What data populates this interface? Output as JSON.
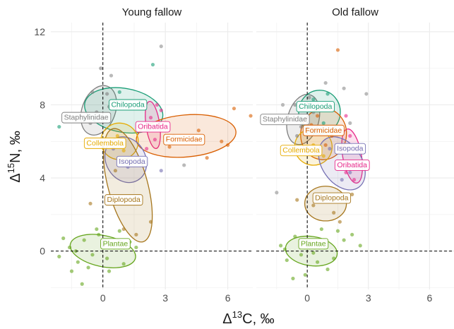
{
  "chart_data": {
    "type": "scatter",
    "facets": [
      "Young fallow",
      "Old fallow"
    ],
    "xlabel": "Δ13C, ‰",
    "ylabel": "Δ15N, ‰",
    "xlim": [
      -2.5,
      7.2
    ],
    "ylim": [
      -2.1,
      12.5
    ],
    "xticks": [
      0,
      3,
      6
    ],
    "yticks": [
      0,
      4,
      8,
      12
    ],
    "reference_lines": {
      "x": 0,
      "y": 0,
      "style": "dashed"
    },
    "grid": true,
    "series": [
      {
        "name": "Staphylinidae",
        "color": "#7f7f7f",
        "panels": {
          "Young fallow": {
            "ellipse": {
              "cx": -0.2,
              "cy": 7.7,
              "rx": 0.8,
              "ry": 1.4,
              "angle": 20
            },
            "label_at": [
              -0.8,
              7.3
            ],
            "points": [
              [
                -0.5,
                8.7
              ],
              [
                0.2,
                8.6
              ],
              [
                -0.1,
                10.0
              ],
              [
                -0.3,
                7.6
              ],
              [
                0.3,
                7.9
              ],
              [
                -0.6,
                7.0
              ]
            ]
          },
          "Old fallow": {
            "ellipse": {
              "cx": -0.2,
              "cy": 7.2,
              "rx": 0.75,
              "ry": 1.4,
              "angle": 15
            },
            "label_at": [
              -1.1,
              7.2
            ],
            "points": [
              [
                -0.6,
                8.0
              ],
              [
                0.1,
                8.4
              ],
              [
                -0.3,
                6.8
              ],
              [
                0.3,
                7.6
              ],
              [
                -0.5,
                6.3
              ],
              [
                0.4,
                5.3
              ]
            ]
          }
        }
      },
      {
        "name": "Chilopoda",
        "color": "#1b9e77",
        "panels": {
          "Young fallow": {
            "ellipse": {
              "cx": 1.0,
              "cy": 7.7,
              "rx": 1.9,
              "ry": 1.2,
              "angle": 10
            },
            "label_at": [
              1.2,
              8.0
            ],
            "points": [
              [
                -0.9,
                7.2
              ],
              [
                0.8,
                8.7
              ],
              [
                1.8,
                8.2
              ],
              [
                2.4,
                10.2
              ],
              [
                -2.1,
                6.8
              ]
            ]
          },
          "Old fallow": {
            "ellipse": {
              "cx": 0.6,
              "cy": 7.6,
              "rx": 1.0,
              "ry": 1.2,
              "angle": 5
            },
            "label_at": [
              0.4,
              7.9
            ],
            "points": [
              [
                0.3,
                8.3
              ],
              [
                1.0,
                8.6
              ],
              [
                -0.3,
                7.3
              ],
              [
                0.8,
                7.0
              ]
            ]
          }
        }
      },
      {
        "name": "Oribatida",
        "color": "#e7298a",
        "panels": {
          "Young fallow": {
            "ellipse": {
              "cx": 2.4,
              "cy": 6.9,
              "rx": 0.33,
              "ry": 1.3,
              "angle": -8
            },
            "label_at": [
              2.4,
              6.8
            ],
            "points": [
              [
                2.6,
                8.0
              ],
              [
                2.3,
                7.3
              ],
              [
                2.5,
                6.1
              ],
              [
                2.1,
                5.6
              ],
              [
                2.8,
                7.7
              ]
            ]
          },
          "Old fallow": {
            "ellipse": {
              "cx": 2.2,
              "cy": 5.2,
              "rx": 0.45,
              "ry": 1.5,
              "angle": -10
            },
            "label_at": [
              2.2,
              4.7
            ],
            "points": [
              [
                2.1,
                6.3
              ],
              [
                2.4,
                5.6
              ],
              [
                1.9,
                4.3
              ],
              [
                2.3,
                3.9
              ],
              [
                1.9,
                7.4
              ]
            ]
          }
        }
      },
      {
        "name": "Formicidae",
        "color": "#d95f02",
        "panels": {
          "Young fallow": {
            "ellipse": {
              "cx": 4.0,
              "cy": 6.3,
              "rx": 2.4,
              "ry": 1.15,
              "angle": -5
            },
            "label_at": [
              3.9,
              6.1
            ],
            "points": [
              [
                3.4,
                6.3
              ],
              [
                4.6,
                6.6
              ],
              [
                5.7,
                6.0
              ],
              [
                6.3,
                7.8
              ],
              [
                7.1,
                7.4
              ],
              [
                5.0,
                5.1
              ],
              [
                3.2,
                5.7
              ],
              [
                6.0,
                5.8
              ]
            ]
          },
          "Old fallow": {
            "ellipse": {
              "cx": 0.8,
              "cy": 6.4,
              "rx": 1.1,
              "ry": 1.4,
              "angle": 5
            },
            "label_at": [
              0.8,
              6.6
            ],
            "points": [
              [
                0.5,
                7.4
              ],
              [
                1.2,
                6.3
              ],
              [
                0.9,
                5.8
              ],
              [
                1.5,
                11.0
              ],
              [
                0.2,
                6.9
              ]
            ]
          }
        }
      },
      {
        "name": "Collembola",
        "color": "#e6ab02",
        "panels": {
          "Young fallow": {
            "ellipse": {
              "cx": 0.8,
              "cy": 6.0,
              "rx": 0.9,
              "ry": 1.0,
              "angle": 10
            },
            "label_at": [
              0.1,
              5.9
            ],
            "points": [
              [
                0.7,
                6.3
              ],
              [
                1.0,
                5.5
              ],
              [
                0.4,
                5.9
              ]
            ]
          },
          "Old fallow": {
            "ellipse": {
              "cx": 0.3,
              "cy": 5.7,
              "rx": 0.9,
              "ry": 1.0,
              "angle": 10
            },
            "label_at": [
              -0.3,
              5.5
            ],
            "points": [
              [
                0.3,
                5.8
              ],
              [
                0.8,
                5.2
              ],
              [
                -0.2,
                5.5
              ]
            ]
          }
        }
      },
      {
        "name": "Isopoda",
        "color": "#7570b3",
        "panels": {
          "Young fallow": {
            "ellipse": {
              "cx": 1.1,
              "cy": 5.0,
              "rx": 0.95,
              "ry": 1.3,
              "angle": -30
            },
            "label_at": [
              1.4,
              4.9
            ],
            "points": [
              [
                0.5,
                5.6
              ],
              [
                1.2,
                4.6
              ],
              [
                2.8,
                4.4
              ],
              [
                1.6,
                4.9
              ]
            ]
          },
          "Old fallow": {
            "ellipse": {
              "cx": 1.7,
              "cy": 4.8,
              "rx": 0.95,
              "ry": 1.6,
              "angle": -35
            },
            "label_at": [
              2.1,
              5.6
            ],
            "points": [
              [
                1.1,
                5.6
              ],
              [
                2.1,
                4.3
              ],
              [
                1.7,
                3.9
              ],
              [
                2.6,
                4.6
              ]
            ]
          }
        }
      },
      {
        "name": "Diplopoda",
        "color": "#a6761d",
        "panels": {
          "Young fallow": {
            "ellipse": {
              "cx": 1.2,
              "cy": 3.6,
              "rx": 0.95,
              "ry": 3.2,
              "angle": -15
            },
            "label_at": [
              1.0,
              2.8
            ],
            "points": [
              [
                -0.6,
                2.6
              ],
              [
                1.0,
                1.2
              ],
              [
                1.6,
                0.9
              ],
              [
                0.6,
                4.4
              ],
              [
                1.7,
                2.9
              ],
              [
                2.3,
                1.6
              ]
            ]
          },
          "Old fallow": {
            "ellipse": {
              "cx": 0.9,
              "cy": 2.6,
              "rx": 1.0,
              "ry": 0.95,
              "angle": 0
            },
            "label_at": [
              1.2,
              2.9
            ],
            "points": [
              [
                -0.5,
                2.8
              ],
              [
                0.3,
                2.5
              ],
              [
                1.3,
                2.1
              ],
              [
                2.2,
                3.1
              ],
              [
                1.6,
                1.6
              ]
            ]
          }
        }
      },
      {
        "name": "Plantae",
        "color": "#66a61e",
        "panels": {
          "Young fallow": {
            "ellipse": {
              "cx": 0.0,
              "cy": 0.0,
              "rx": 1.6,
              "ry": 0.85,
              "angle": 12
            },
            "label_at": [
              0.6,
              0.4
            ],
            "points": [
              [
                -2.1,
                -0.3
              ],
              [
                -1.6,
                0.2
              ],
              [
                -1.2,
                -0.6
              ],
              [
                -0.9,
                0.6
              ],
              [
                -0.5,
                -0.2
              ],
              [
                -0.2,
                0.9
              ],
              [
                0.2,
                -0.4
              ],
              [
                0.6,
                0.3
              ],
              [
                1.0,
                -0.7
              ],
              [
                1.3,
                0.5
              ],
              [
                -1.9,
                0.7
              ],
              [
                -1.5,
                -1.1
              ],
              [
                -1.0,
                -1.8
              ],
              [
                -0.3,
                1.2
              ],
              [
                0.8,
                1.1
              ],
              [
                1.6,
                0.2
              ],
              [
                -0.7,
                -0.9
              ],
              [
                0.3,
                -1.1
              ],
              [
                -1.3,
                0.0
              ],
              [
                0.0,
                0.4
              ]
            ]
          },
          "Old fallow": {
            "ellipse": {
              "cx": 0.2,
              "cy": 0.0,
              "rx": 1.25,
              "ry": 0.8,
              "angle": 8
            },
            "label_at": [
              0.3,
              0.4
            ],
            "points": [
              [
                -1.3,
                0.3
              ],
              [
                -1.0,
                -0.5
              ],
              [
                -0.6,
                0.8
              ],
              [
                -0.3,
                -0.2
              ],
              [
                0.1,
                0.5
              ],
              [
                0.5,
                -0.6
              ],
              [
                0.9,
                0.2
              ],
              [
                1.3,
                -0.4
              ],
              [
                1.8,
                0.6
              ],
              [
                2.2,
                0.9
              ],
              [
                2.6,
                0.3
              ],
              [
                -0.7,
                -1.5
              ],
              [
                -0.1,
                -1.3
              ],
              [
                0.7,
                1.2
              ],
              [
                -1.1,
                0.1
              ],
              [
                1.0,
                -1.0
              ],
              [
                1.5,
                1.1
              ],
              [
                0.3,
                -0.1
              ]
            ]
          }
        }
      }
    ],
    "background_points": {
      "color": "#b3b3b3",
      "Young fallow": [
        [
          2.8,
          11.2
        ],
        [
          0.4,
          9.6
        ],
        [
          3.9,
          4.7
        ],
        [
          1.4,
          4.8
        ]
      ],
      "Old fallow": [
        [
          2.9,
          8.6
        ],
        [
          -1.2,
          8.0
        ],
        [
          1.8,
          8.9
        ],
        [
          0.9,
          9.2
        ],
        [
          2.1,
          7.0
        ],
        [
          -1.5,
          3.2
        ]
      ]
    }
  }
}
